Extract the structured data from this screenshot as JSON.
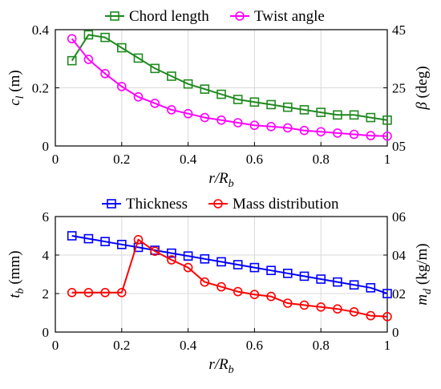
{
  "chart_data": [
    {
      "type": "line",
      "x": [
        0.05,
        0.1,
        0.15,
        0.2,
        0.25,
        0.3,
        0.35,
        0.4,
        0.45,
        0.5,
        0.55,
        0.6,
        0.65,
        0.7,
        0.75,
        0.8,
        0.85,
        0.9,
        0.95,
        1.0
      ],
      "xlabel": "r/R_b",
      "xlim": [
        0,
        1
      ],
      "xticks": [
        "0",
        "0.2",
        "0.4",
        "0.6",
        "0.8",
        "1"
      ],
      "ylabel_left": "c_l (m)",
      "ylim_left": [
        0,
        0.45
      ],
      "yticks_left": [
        "0",
        "0.2",
        "0.4"
      ],
      "ylabel_right": "β (deg)",
      "ylim_right": [
        0,
        45
      ],
      "yticks_right": [
        "05",
        "25",
        "45"
      ],
      "grid": true,
      "legend_position": "top",
      "series": [
        {
          "name": "Chord length",
          "axis": "left",
          "color": "#1f8a1f",
          "marker": "square",
          "values": [
            0.33,
            0.43,
            0.42,
            0.38,
            0.34,
            0.3,
            0.27,
            0.24,
            0.22,
            0.2,
            0.18,
            0.17,
            0.16,
            0.15,
            0.14,
            0.13,
            0.12,
            0.12,
            0.11,
            0.1
          ]
        },
        {
          "name": "Twist angle",
          "axis": "right",
          "color": "#ff00ff",
          "marker": "circle",
          "values": [
            41.5,
            33.5,
            28.0,
            23.0,
            19.0,
            16.5,
            14.0,
            12.5,
            11.0,
            10.0,
            9.0,
            8.0,
            7.5,
            7.0,
            6.0,
            5.5,
            5.0,
            4.5,
            4.0,
            3.8
          ]
        }
      ]
    },
    {
      "type": "line",
      "x": [
        0.05,
        0.1,
        0.15,
        0.2,
        0.25,
        0.3,
        0.35,
        0.4,
        0.45,
        0.5,
        0.55,
        0.6,
        0.65,
        0.7,
        0.75,
        0.8,
        0.85,
        0.9,
        0.95,
        1.0
      ],
      "xlabel": "r/R_b",
      "xlim": [
        0,
        1
      ],
      "xticks": [
        "0",
        "0.2",
        "0.4",
        "0.6",
        "0.8",
        "1"
      ],
      "ylabel_left": "t_b (mm)",
      "ylim_left": [
        0,
        6
      ],
      "yticks_left": [
        "0",
        "2",
        "4",
        "6"
      ],
      "ylabel_right": "m_d (kg/m)",
      "ylim_right": [
        0,
        0.06
      ],
      "yticks_right": [
        "0",
        "02",
        "04",
        "06"
      ],
      "grid": true,
      "legend_position": "top",
      "series": [
        {
          "name": "Thickness",
          "axis": "left",
          "color": "#0000ff",
          "marker": "square",
          "values": [
            5.0,
            4.85,
            4.7,
            4.55,
            4.4,
            4.25,
            4.1,
            3.95,
            3.8,
            3.65,
            3.5,
            3.35,
            3.2,
            3.05,
            2.9,
            2.75,
            2.6,
            2.45,
            2.3,
            2.0
          ]
        },
        {
          "name": "Mass distribution",
          "axis": "right",
          "color": "#ff0000",
          "marker": "circle",
          "values": [
            0.0205,
            0.0205,
            0.0205,
            0.0205,
            0.048,
            0.042,
            0.0375,
            0.0335,
            0.026,
            0.0235,
            0.021,
            0.0195,
            0.0185,
            0.015,
            0.014,
            0.013,
            0.012,
            0.0105,
            0.0085,
            0.008
          ]
        }
      ]
    }
  ]
}
